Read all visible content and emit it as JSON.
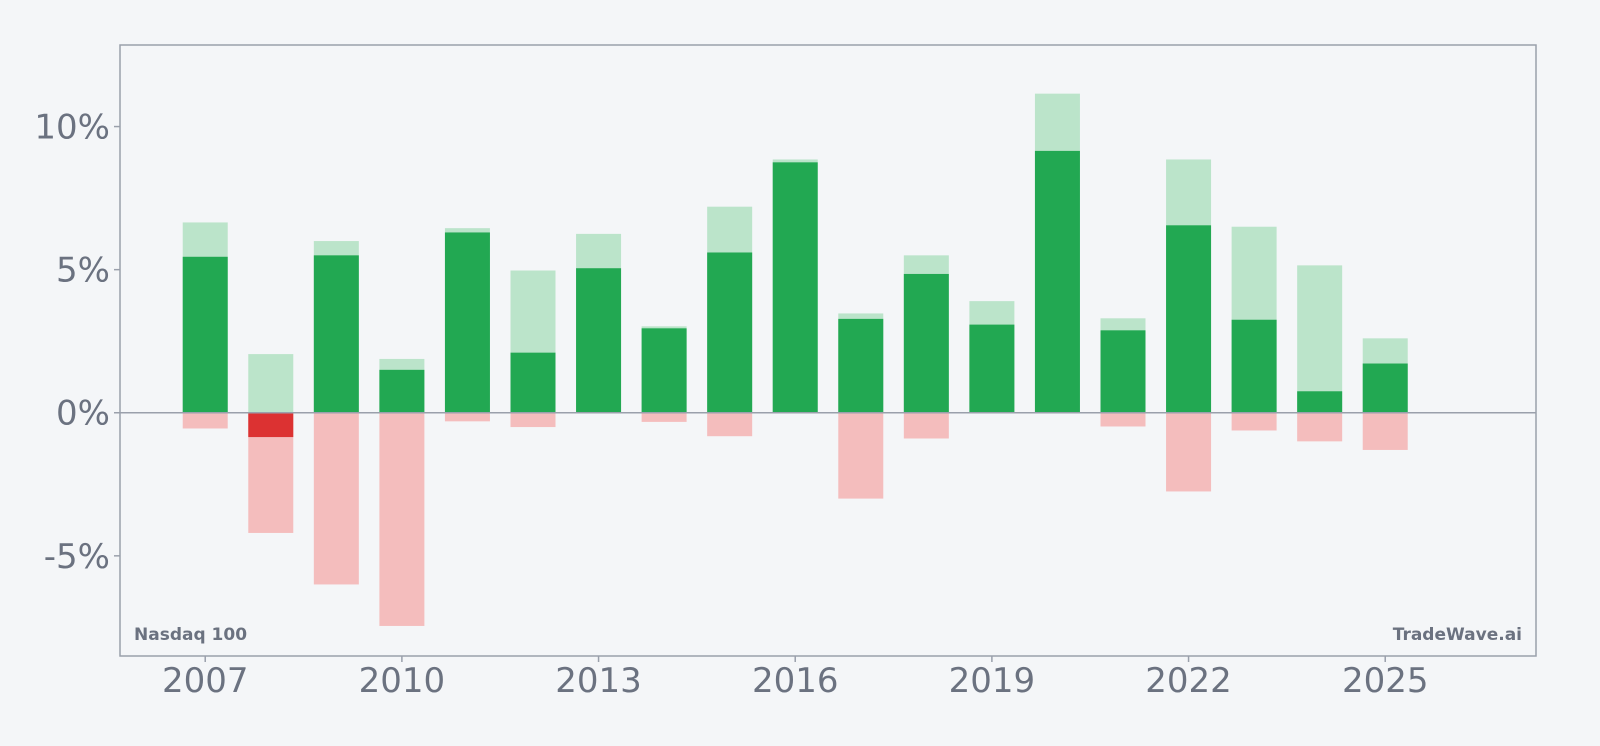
{
  "chart_data": {
    "type": "bar",
    "x": [
      2007,
      2008,
      2009,
      2010,
      2011,
      2012,
      2013,
      2014,
      2015,
      2016,
      2017,
      2018,
      2019,
      2020,
      2021,
      2022,
      2023,
      2024,
      2025
    ],
    "series": [
      {
        "key": "close",
        "values": [
          5.45,
          -0.85,
          5.5,
          1.5,
          6.3,
          2.1,
          5.05,
          2.95,
          5.6,
          8.75,
          3.28,
          4.85,
          3.08,
          9.15,
          2.88,
          6.55,
          3.25,
          0.75,
          1.72
        ]
      },
      {
        "key": "high",
        "values": [
          6.65,
          2.05,
          6.0,
          1.88,
          6.45,
          4.97,
          6.25,
          3.02,
          7.2,
          8.85,
          3.47,
          5.5,
          3.9,
          11.15,
          3.3,
          8.85,
          6.5,
          5.15,
          2.6
        ]
      },
      {
        "key": "low",
        "values": [
          -0.55,
          -4.2,
          -6.0,
          -7.45,
          -0.3,
          -0.5,
          0,
          -0.32,
          -0.82,
          0,
          -3.0,
          -0.9,
          0,
          0,
          -0.48,
          -2.75,
          -0.62,
          -1.0,
          -1.3
        ]
      }
    ],
    "x_ticks": [
      2007,
      2010,
      2013,
      2016,
      2019,
      2022,
      2025
    ],
    "y_ticks": [
      10,
      5,
      0,
      -5
    ],
    "y_tick_labels": [
      "10%",
      "5%",
      "0%",
      "-5%"
    ],
    "xlim": [
      2005.7,
      2027.3
    ],
    "ylim": [
      -8.5,
      12.85
    ],
    "grid": false,
    "colors": {
      "positive_strong": "#22a852",
      "positive_light": "#bbe4ca",
      "negative_strong": "#dc3232",
      "negative_light": "#f4bdbd",
      "axis": "#9aa0ab",
      "text": "#6b7280",
      "background": "#f4f6f8"
    }
  },
  "labels": {
    "series_name": "Nasdaq 100",
    "watermark": "TradeWave.ai"
  }
}
